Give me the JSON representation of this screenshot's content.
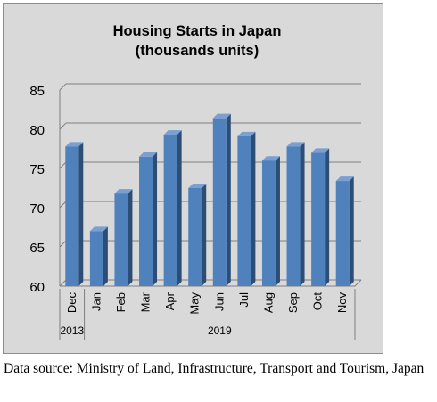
{
  "chart_data": {
    "type": "bar",
    "title_lines": [
      "Housing Starts in Japan",
      "(thousands units)"
    ],
    "categories": [
      "Dec",
      "Jan",
      "Feb",
      "Mar",
      "Apr",
      "May",
      "Jun",
      "Jul",
      "Aug",
      "Sep",
      "Oct",
      "Nov"
    ],
    "values": [
      77.8,
      67.0,
      71.8,
      76.5,
      79.3,
      72.5,
      81.4,
      79.1,
      76.0,
      77.8,
      77.0,
      73.4
    ],
    "year_groups": [
      {
        "label": "2013",
        "start": 0,
        "end": 0
      },
      {
        "label": "2019",
        "start": 1,
        "end": 11
      }
    ],
    "ylim": [
      60,
      85
    ],
    "yticks": [
      60,
      65,
      70,
      75,
      80,
      85
    ],
    "grid": true,
    "style": "3d-column",
    "bar_color": "#4f81bd"
  },
  "caption": "Data source: Ministry of Land, Infrastructure, Transport and Tourism, Japan"
}
